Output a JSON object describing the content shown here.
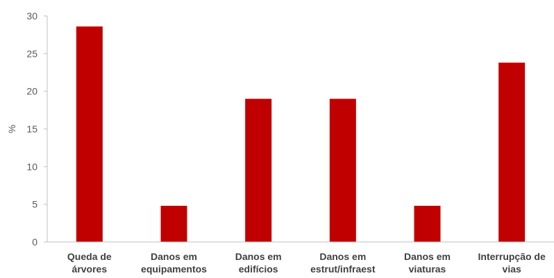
{
  "chart_data": {
    "type": "bar",
    "categories": [
      [
        "Queda de",
        "árvores"
      ],
      [
        "Danos em",
        "equipamentos"
      ],
      [
        "Danos em",
        "edifícios"
      ],
      [
        "Danos em",
        "estrut/infraest"
      ],
      [
        "Danos em",
        "viaturas"
      ],
      [
        "Interrupção de",
        "vias"
      ]
    ],
    "values": [
      28.6,
      4.8,
      19.0,
      19.0,
      4.8,
      23.8
    ],
    "title": "",
    "xlabel": "",
    "ylabel": "%",
    "ylim": [
      0,
      30
    ],
    "yticks": [
      0,
      5,
      10,
      15,
      20,
      25,
      30
    ],
    "bar_color": "#C00000",
    "grid": false,
    "legend": "none"
  }
}
